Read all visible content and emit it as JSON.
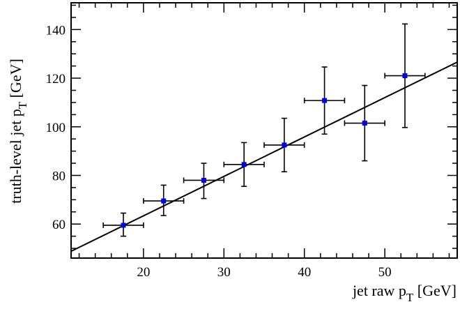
{
  "chart_data": {
    "type": "scatter",
    "xlabel": "jet raw p_T [GeV]",
    "ylabel": "truth-level jet p_T [GeV]",
    "xlim": [
      11,
      59
    ],
    "ylim": [
      46,
      151
    ],
    "xticks": [
      20,
      30,
      40,
      50
    ],
    "yticks": [
      60,
      80,
      100,
      120,
      140
    ],
    "grid": false,
    "points": [
      {
        "x": 17.5,
        "y": 59.5,
        "xerr": 2.5,
        "yerr_low": 4.5,
        "yerr_high": 5.0
      },
      {
        "x": 22.5,
        "y": 69.5,
        "xerr": 2.5,
        "yerr_low": 6.0,
        "yerr_high": 6.5
      },
      {
        "x": 27.5,
        "y": 78.0,
        "xerr": 2.5,
        "yerr_low": 7.5,
        "yerr_high": 7.0
      },
      {
        "x": 32.5,
        "y": 84.5,
        "xerr": 2.5,
        "yerr_low": 9.0,
        "yerr_high": 9.0
      },
      {
        "x": 37.5,
        "y": 92.5,
        "xerr": 2.5,
        "yerr_low": 11.0,
        "yerr_high": 11.0
      },
      {
        "x": 42.5,
        "y": 110.8,
        "xerr": 2.5,
        "yerr_low": 13.8,
        "yerr_high": 13.8
      },
      {
        "x": 47.5,
        "y": 101.5,
        "xerr": 2.5,
        "yerr_low": 15.5,
        "yerr_high": 15.5
      },
      {
        "x": 52.5,
        "y": 121.0,
        "xerr": 2.5,
        "yerr_low": 21.3,
        "yerr_high": 21.3
      }
    ],
    "fit_line": {
      "x": [
        11,
        59
      ],
      "y": [
        48.8,
        126.6
      ]
    },
    "marker_color": "#0000ee",
    "line_color": "#000000"
  }
}
